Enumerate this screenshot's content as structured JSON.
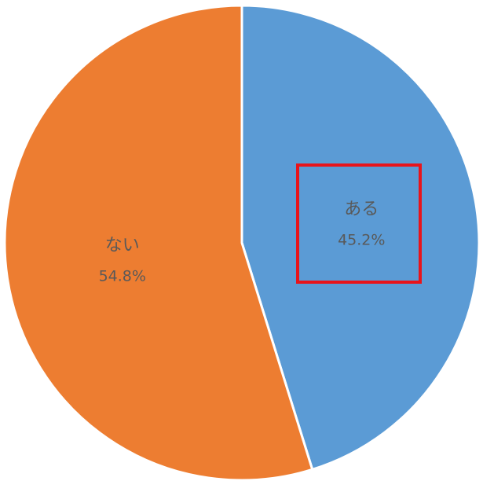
{
  "chart_data": {
    "type": "pie",
    "categories": [
      "ある",
      "ない"
    ],
    "values": [
      45.2,
      54.8
    ],
    "value_labels": [
      "45.2%",
      "54.8%"
    ],
    "colors": [
      "#5b9bd5",
      "#ed7d31"
    ]
  }
}
